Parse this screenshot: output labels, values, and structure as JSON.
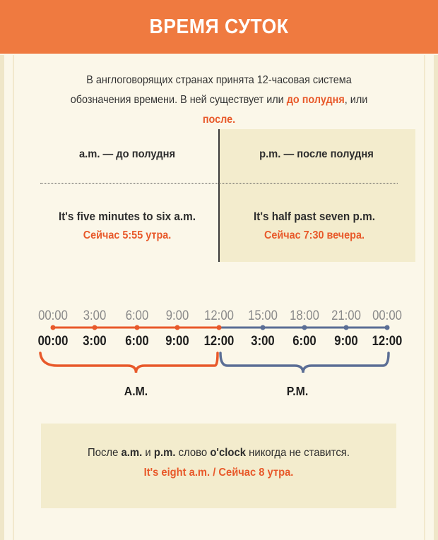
{
  "header": {
    "title": "ВРЕМЯ СУТОК"
  },
  "intro": {
    "part1": "В англоговорящих странах принята 12-часовая система",
    "part2": "обозначения времени. В ней существует или",
    "am_word": "до полудня",
    "sep": ", или",
    "pm_word": "после",
    "end": "."
  },
  "columns": {
    "am": {
      "heading": "a.m. — до полудня",
      "example_en": "It's five minutes to six a.m.",
      "example_ru": "Сейчас 5:55 утра."
    },
    "pm": {
      "heading": "p.m. — после полудня",
      "example_en": "It's half past seven p.m.",
      "example_ru": "Сейчас 7:30 вечера."
    }
  },
  "timeline": {
    "labels_24h": [
      "00:00",
      "3:00",
      "6:00",
      "9:00",
      "12:00",
      "15:00",
      "18:00",
      "21:00",
      "00:00"
    ],
    "labels_12h": [
      "00:00",
      "3:00",
      "6:00",
      "9:00",
      "12:00",
      "3:00",
      "6:00",
      "9:00",
      "12:00"
    ],
    "am_label": "A.M.",
    "pm_label": "P.M.",
    "colors": {
      "am": "#e8592a",
      "pm": "#5b6e95",
      "muted": "#8a8a8a"
    }
  },
  "note": {
    "t1": "После",
    "b1": "a.m.",
    "t2": "и",
    "b2": "p.m.",
    "t3": "слово",
    "b3": "o'clock",
    "t4": "никогда не ставится.",
    "example": "It's eight a.m. / Сейчас 8 утра."
  }
}
